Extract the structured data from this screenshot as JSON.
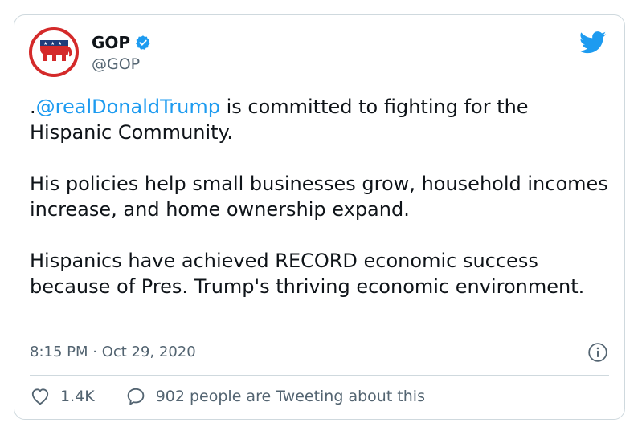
{
  "account": {
    "name": "GOP",
    "handle": "@GOP"
  },
  "tweet": {
    "prefix": ".",
    "mention": "@realDonaldTrump",
    "line1_rest": " is committed to fighting for the Hispanic Community.",
    "para2": "His policies help small businesses grow, household incomes increase, and home ownership expand.",
    "para3": "Hispanics have achieved RECORD economic success because of Pres. Trump's thriving economic environment."
  },
  "meta": {
    "timestamp": "8:15 PM · Oct 29, 2020"
  },
  "actions": {
    "likes": "1.4K",
    "tweeting": "902 people are Tweeting about this"
  },
  "colors": {
    "accent": "#1d9bf0",
    "brand_red": "#d42a2a",
    "muted": "#536471"
  },
  "icons": [
    "gop-elephant-logo",
    "verified-badge-icon",
    "twitter-bird-icon",
    "info-icon",
    "heart-icon",
    "speech-bubble-icon"
  ]
}
